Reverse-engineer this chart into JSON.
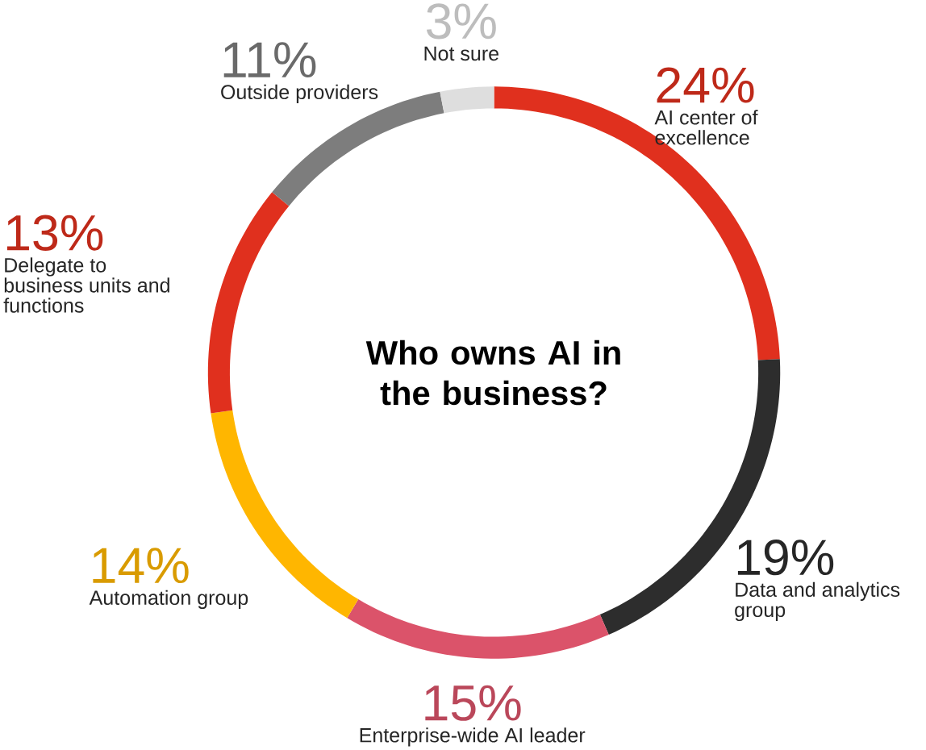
{
  "chart_data": {
    "type": "donut",
    "title": "Who owns AI in the business?",
    "categories": [
      "AI center of excellence",
      "Data and analytics group",
      "Enterprise-wide AI leader",
      "Automation group",
      "Delegate to business units and functions",
      "Outside providers",
      "Not sure"
    ],
    "values": [
      24,
      19,
      15,
      14,
      13,
      11,
      3
    ],
    "value_labels": [
      "24%",
      "19%",
      "15%",
      "14%",
      "13%",
      "11%",
      "3%"
    ],
    "colors": [
      "#e0301e",
      "#2d2d2d",
      "#db536a",
      "#ffb600",
      "#e0301e",
      "#7d7d7d",
      "#dedede"
    ]
  }
}
